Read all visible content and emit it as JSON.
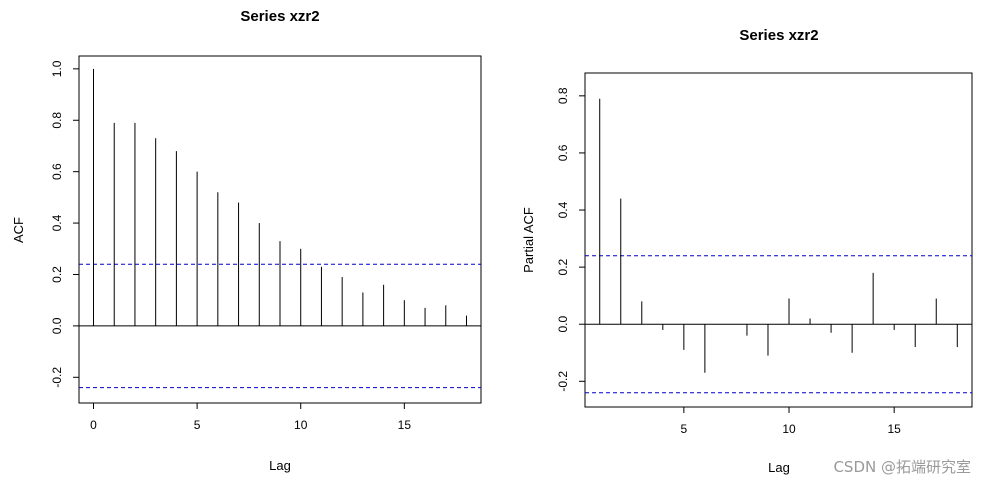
{
  "chart_data": [
    {
      "type": "bar",
      "title": "Series  xzr2",
      "xlabel": "Lag",
      "ylabel": "ACF",
      "xlim": [
        -0.7,
        18.7
      ],
      "ylim": [
        -0.3,
        1.05
      ],
      "x_ticks": [
        0,
        5,
        10,
        15
      ],
      "y_ticks": [
        -0.2,
        0.0,
        0.2,
        0.4,
        0.6,
        0.8,
        1.0
      ],
      "lags": [
        0,
        1,
        2,
        3,
        4,
        5,
        6,
        7,
        8,
        9,
        10,
        11,
        12,
        13,
        14,
        15,
        16,
        17,
        18
      ],
      "values": [
        1.0,
        0.79,
        0.79,
        0.73,
        0.68,
        0.6,
        0.52,
        0.48,
        0.4,
        0.33,
        0.3,
        0.23,
        0.19,
        0.13,
        0.16,
        0.1,
        0.07,
        0.08,
        0.04
      ],
      "conf_band": 0.24,
      "conf_color": "#0000cc"
    },
    {
      "type": "bar",
      "title": "Series  xzr2",
      "xlabel": "Lag",
      "ylabel": "Partial ACF",
      "xlim": [
        0.3,
        18.7
      ],
      "ylim": [
        -0.29,
        0.88
      ],
      "x_ticks": [
        5,
        10,
        15
      ],
      "y_ticks": [
        -0.2,
        0.0,
        0.2,
        0.4,
        0.6,
        0.8
      ],
      "lags": [
        1,
        2,
        3,
        4,
        5,
        6,
        7,
        8,
        9,
        10,
        11,
        12,
        13,
        14,
        15,
        16,
        17,
        18
      ],
      "values": [
        0.79,
        0.44,
        0.08,
        -0.02,
        -0.09,
        -0.17,
        0.0,
        -0.04,
        -0.11,
        0.09,
        0.02,
        -0.03,
        -0.1,
        0.18,
        -0.02,
        -0.08,
        0.09,
        -0.08
      ],
      "conf_band": 0.24,
      "conf_color": "#0000cc"
    }
  ],
  "watermark": "CSDN @拓端研究室"
}
